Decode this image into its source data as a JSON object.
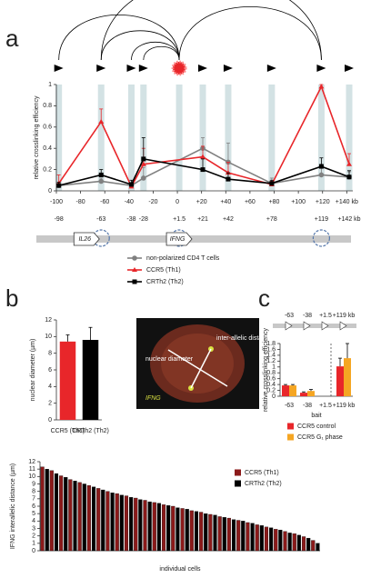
{
  "panels": [
    "a",
    "b",
    "c"
  ],
  "image_labels": {
    "nuclear": "nuclear diameter",
    "interallelic": "inter-allelic distance",
    "gene": "IFNG"
  },
  "chart_data": [
    {
      "type": "line",
      "ylabel": "relative crosslinking efficiency",
      "xlim": [
        -100,
        145
      ],
      "ylim": [
        0,
        1
      ],
      "xticks": [
        -100,
        -80,
        -60,
        -40,
        -20,
        0,
        {
          "value": 20,
          "label": "+20"
        },
        {
          "value": 40,
          "label": "+40"
        },
        {
          "value": 60,
          "label": "+60"
        },
        {
          "value": 80,
          "label": "+80"
        },
        {
          "value": 100,
          "label": "+100"
        },
        {
          "value": 120,
          "label": "+120"
        },
        {
          "value": 140,
          "label": "+140 kb"
        }
      ],
      "yticks": [
        0,
        0.2,
        0.4,
        0.6,
        0.8,
        1
      ],
      "sites": [
        -98,
        -63,
        -38,
        -28,
        {
          "value": 1.5,
          "label": "+1.5"
        },
        {
          "value": 21,
          "label": "+21"
        },
        {
          "value": 42,
          "label": "+42"
        },
        {
          "value": 78,
          "label": "+78"
        },
        {
          "value": 119,
          "label": "+119"
        },
        {
          "value": 142,
          "label": "+142 kb"
        }
      ],
      "genes": [
        "IL26",
        "IFNG"
      ],
      "x": [
        -98,
        -63,
        -38,
        -28,
        21,
        42,
        78,
        119,
        142
      ],
      "series": [
        {
          "name": "non-polarized CD4 T cells",
          "color": "#808080",
          "marker": "circle",
          "values": [
            0.05,
            0.09,
            0.05,
            0.12,
            0.4,
            0.27,
            0.07,
            0.15,
            0.13
          ],
          "errors": [
            0.02,
            0.03,
            0.02,
            0.1,
            0.1,
            0.18,
            0.05,
            0.1,
            0.05
          ]
        },
        {
          "name": "CCR5 (Th1)",
          "color": "#e8262a",
          "marker": "triangle",
          "values": [
            0.07,
            0.65,
            0.04,
            0.25,
            0.32,
            0.17,
            0.06,
            0.98,
            0.25
          ],
          "errors": [
            0.08,
            0.12,
            0.03,
            0.15,
            0.1,
            0.1,
            0.03,
            0.02,
            0.1
          ]
        },
        {
          "name": "CRTh2 (Th2)",
          "color": "#000000",
          "marker": "square",
          "values": [
            0.05,
            0.15,
            0.06,
            0.3,
            0.2,
            0.11,
            0.07,
            0.23,
            0.13
          ],
          "errors": [
            0.03,
            0.05,
            0.04,
            0.2,
            0.1,
            0.06,
            0.03,
            0.08,
            0.06
          ]
        }
      ]
    },
    {
      "type": "bar",
      "ylabel": "nuclear diameter (µm)",
      "categories": [
        "CCR5 (Th1)",
        "CRTh2 (Th2)"
      ],
      "values": [
        9.4,
        9.6
      ],
      "errors": [
        0.8,
        1.5
      ],
      "colors": [
        "#e8262a",
        "#000000"
      ],
      "ylim": [
        0,
        12
      ],
      "yticks": [
        0,
        2,
        4,
        6,
        8,
        10,
        12
      ]
    },
    {
      "type": "bar",
      "ylabel": "relative crosslinking efficiency",
      "xlabel": "bait",
      "categories": [
        "-63",
        "-38",
        "+1.5",
        "+119 kb"
      ],
      "ylim": [
        0,
        1.8
      ],
      "yticks": [
        0,
        0.2,
        0.4,
        0.6,
        0.8,
        1,
        1.2,
        1.4,
        1.6,
        1.8
      ],
      "series": [
        {
          "name": "CCR5 control",
          "color": "#e8262a",
          "values": [
            0.37,
            0.12,
            null,
            1.02
          ],
          "errors": [
            0.03,
            0.03,
            null,
            0.28
          ]
        },
        {
          "name": "CCR5 G₁ phase",
          "color": "#f5a623",
          "values": [
            0.37,
            0.18,
            null,
            1.3
          ],
          "errors": [
            0.03,
            0.05,
            null,
            0.5
          ]
        }
      ]
    },
    {
      "type": "bar",
      "ylabel": "IFNG interallelic distance (µm)",
      "xlabel": "individual cells",
      "ylim": [
        0,
        12
      ],
      "yticks": [
        0,
        1,
        2,
        3,
        4,
        5,
        6,
        7,
        8,
        9,
        10,
        11,
        12
      ],
      "series": [
        {
          "name": "CCR5 (Th1)",
          "color": "#8b1a1a",
          "values": [
            11.3,
            null,
            10.8,
            null,
            10.1,
            null,
            9.6,
            null,
            9.2,
            null,
            8.8,
            null,
            8.4,
            null,
            8.0,
            null,
            7.7,
            null,
            7.4,
            null,
            7.1,
            null,
            6.8,
            null,
            6.5,
            null,
            6.2,
            null,
            6.0,
            null,
            5.7,
            null,
            5.4,
            null,
            5.2,
            null,
            4.9,
            null,
            4.6,
            null,
            4.4,
            null,
            4.1,
            null,
            3.8,
            null,
            3.5,
            null,
            3.2,
            null,
            2.9,
            null,
            2.6,
            null,
            2.3,
            null,
            1.9,
            null,
            1.4,
            null
          ]
        },
        {
          "name": "CRTh2 (Th2)",
          "color": "#000000",
          "values": [
            null,
            11.0,
            null,
            10.4,
            null,
            9.9,
            null,
            9.4,
            null,
            9.0,
            null,
            8.6,
            null,
            8.2,
            null,
            7.8,
            null,
            7.5,
            null,
            7.2,
            null,
            6.9,
            null,
            6.6,
            null,
            6.4,
            null,
            6.1,
            null,
            5.8,
            null,
            5.6,
            null,
            5.3,
            null,
            5.0,
            null,
            4.8,
            null,
            4.5,
            null,
            4.2,
            null,
            4.0,
            null,
            3.7,
            null,
            3.4,
            null,
            3.1,
            null,
            2.8,
            null,
            2.4,
            null,
            2.1,
            null,
            1.7,
            null,
            1.0
          ]
        }
      ]
    }
  ]
}
